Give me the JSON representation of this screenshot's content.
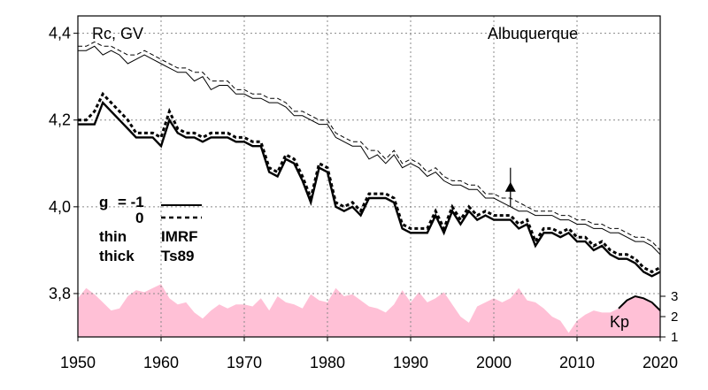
{
  "chart_data": {
    "type": "line",
    "x_range": [
      1950,
      2020
    ],
    "y_range": [
      3.7,
      4.44
    ],
    "x_ticks": [
      "1950",
      "1960",
      "1970",
      "1980",
      "1990",
      "2000",
      "2010",
      "2020"
    ],
    "y_ticks": [
      "3,8",
      "4,0",
      "4,2",
      "4,4"
    ],
    "ylabel": "Rc, GV",
    "station": "Albuquerque",
    "legend": {
      "g_label": "g",
      "g_values": [
        "= -1",
        "0"
      ],
      "thin_label": "thin",
      "thin_model": "IMRF",
      "thick_label": "thick",
      "thick_model": "Ts89"
    },
    "kp": {
      "label": "Kp",
      "axis_ticks": [
        "3",
        "2",
        "1"
      ],
      "axis_values": [
        3,
        2,
        1
      ],
      "color": "#ffc0d6",
      "years": [
        1950,
        1951,
        1952,
        1953,
        1954,
        1955,
        1956,
        1957,
        1958,
        1959,
        1960,
        1961,
        1962,
        1963,
        1964,
        1965,
        1966,
        1967,
        1968,
        1969,
        1970,
        1971,
        1972,
        1973,
        1974,
        1975,
        1976,
        1977,
        1978,
        1979,
        1980,
        1981,
        1982,
        1983,
        1984,
        1985,
        1986,
        1987,
        1988,
        1989,
        1990,
        1991,
        1992,
        1993,
        1994,
        1995,
        1996,
        1997,
        1998,
        1999,
        2000,
        2001,
        2002,
        2003,
        2004,
        2005,
        2006,
        2007,
        2008,
        2009,
        2010,
        2011,
        2012,
        2013,
        2014,
        2015,
        2016,
        2017,
        2018,
        2019,
        2020
      ],
      "values": [
        2.9,
        3.4,
        3.1,
        2.7,
        2.3,
        2.4,
        3.0,
        3.3,
        3.2,
        3.4,
        3.6,
        2.9,
        2.6,
        2.7,
        2.2,
        1.9,
        2.3,
        2.6,
        2.4,
        2.6,
        2.6,
        2.5,
        2.9,
        2.3,
        3.0,
        2.7,
        2.6,
        2.4,
        3.1,
        2.8,
        2.7,
        3.4,
        3.0,
        3.1,
        2.8,
        2.5,
        2.4,
        2.2,
        2.6,
        3.3,
        2.7,
        3.2,
        2.7,
        2.9,
        3.2,
        2.6,
        2.0,
        1.7,
        2.5,
        2.7,
        2.9,
        2.7,
        2.9,
        3.4,
        2.8,
        2.7,
        2.4,
        2.0,
        1.8,
        1.2,
        1.8,
        2.1,
        2.3,
        2.2,
        2.2,
        2.4,
        2.8,
        3.0,
        2.9,
        2.7,
        2.3
      ]
    },
    "reference_point": {
      "year": 2002,
      "value": 4.045,
      "error": 0.045
    },
    "series": [
      {
        "style": "solid-thick",
        "years": [
          1950,
          1951,
          1952,
          1953,
          1954,
          1955,
          1956,
          1957,
          1958,
          1959,
          1960,
          1961,
          1962,
          1963,
          1964,
          1965,
          1966,
          1967,
          1968,
          1969,
          1970,
          1971,
          1972,
          1973,
          1974,
          1975,
          1976,
          1977,
          1978,
          1979,
          1980,
          1981,
          1982,
          1983,
          1984,
          1985,
          1986,
          1987,
          1988,
          1989,
          1990,
          1991,
          1992,
          1993,
          1994,
          1995,
          1996,
          1997,
          1998,
          1999,
          2000,
          2001,
          2002,
          2003,
          2004,
          2005,
          2006,
          2007,
          2008,
          2009,
          2010,
          2011,
          2012,
          2013,
          2014,
          2015,
          2016,
          2017,
          2018,
          2019,
          2020
        ],
        "values": [
          4.19,
          4.19,
          4.19,
          4.24,
          4.22,
          4.2,
          4.18,
          4.16,
          4.16,
          4.16,
          4.14,
          4.2,
          4.17,
          4.16,
          4.16,
          4.15,
          4.16,
          4.16,
          4.16,
          4.15,
          4.15,
          4.14,
          4.14,
          4.08,
          4.07,
          4.11,
          4.1,
          4.06,
          4.01,
          4.09,
          4.08,
          4.0,
          3.99,
          4.0,
          3.98,
          4.02,
          4.02,
          4.02,
          4.01,
          3.95,
          3.94,
          3.94,
          3.94,
          3.98,
          3.94,
          3.99,
          3.96,
          3.99,
          3.97,
          3.98,
          3.97,
          3.97,
          3.97,
          3.95,
          3.96,
          3.91,
          3.94,
          3.94,
          3.93,
          3.94,
          3.92,
          3.92,
          3.9,
          3.91,
          3.89,
          3.88,
          3.88,
          3.87,
          3.85,
          3.84,
          3.85
        ]
      },
      {
        "style": "dotted-thick",
        "years": [
          1950,
          1951,
          1952,
          1953,
          1954,
          1955,
          1956,
          1957,
          1958,
          1959,
          1960,
          1961,
          1962,
          1963,
          1964,
          1965,
          1966,
          1967,
          1968,
          1969,
          1970,
          1971,
          1972,
          1973,
          1974,
          1975,
          1976,
          1977,
          1978,
          1979,
          1980,
          1981,
          1982,
          1983,
          1984,
          1985,
          1986,
          1987,
          1988,
          1989,
          1990,
          1991,
          1992,
          1993,
          1994,
          1995,
          1996,
          1997,
          1998,
          1999,
          2000,
          2001,
          2002,
          2003,
          2004,
          2005,
          2006,
          2007,
          2008,
          2009,
          2010,
          2011,
          2012,
          2013,
          2014,
          2015,
          2016,
          2017,
          2018,
          2019,
          2020
        ],
        "values": [
          4.2,
          4.2,
          4.22,
          4.26,
          4.24,
          4.22,
          4.2,
          4.17,
          4.17,
          4.17,
          4.16,
          4.22,
          4.18,
          4.17,
          4.17,
          4.16,
          4.17,
          4.17,
          4.17,
          4.16,
          4.16,
          4.15,
          4.15,
          4.09,
          4.08,
          4.12,
          4.11,
          4.07,
          4.02,
          4.1,
          4.09,
          4.01,
          4.0,
          4.01,
          3.99,
          4.03,
          4.03,
          4.03,
          4.02,
          3.96,
          3.95,
          3.95,
          3.95,
          3.99,
          3.95,
          4.0,
          3.97,
          4.0,
          3.98,
          3.99,
          3.98,
          3.98,
          3.98,
          3.96,
          3.97,
          3.92,
          3.95,
          3.95,
          3.94,
          3.95,
          3.93,
          3.93,
          3.91,
          3.92,
          3.9,
          3.89,
          3.89,
          3.88,
          3.86,
          3.85,
          3.86
        ]
      },
      {
        "style": "solid-thin",
        "years": [
          1950,
          1951,
          1952,
          1953,
          1954,
          1955,
          1956,
          1957,
          1958,
          1959,
          1960,
          1961,
          1962,
          1963,
          1964,
          1965,
          1966,
          1967,
          1968,
          1969,
          1970,
          1971,
          1972,
          1973,
          1974,
          1975,
          1976,
          1977,
          1978,
          1979,
          1980,
          1981,
          1982,
          1983,
          1984,
          1985,
          1986,
          1987,
          1988,
          1989,
          1990,
          1991,
          1992,
          1993,
          1994,
          1995,
          1996,
          1997,
          1998,
          1999,
          2000,
          2001,
          2002,
          2003,
          2004,
          2005,
          2006,
          2007,
          2008,
          2009,
          2010,
          2011,
          2012,
          2013,
          2014,
          2015,
          2016,
          2017,
          2018,
          2019,
          2020
        ],
        "values": [
          4.36,
          4.36,
          4.37,
          4.35,
          4.36,
          4.35,
          4.33,
          4.34,
          4.35,
          4.34,
          4.33,
          4.32,
          4.31,
          4.31,
          4.29,
          4.3,
          4.27,
          4.28,
          4.28,
          4.26,
          4.26,
          4.25,
          4.25,
          4.24,
          4.24,
          4.23,
          4.21,
          4.21,
          4.2,
          4.19,
          4.19,
          4.16,
          4.15,
          4.14,
          4.14,
          4.11,
          4.12,
          4.1,
          4.12,
          4.09,
          4.1,
          4.09,
          4.07,
          4.08,
          4.06,
          4.05,
          4.05,
          4.04,
          4.04,
          4.02,
          4.02,
          4.01,
          4.0,
          3.99,
          3.99,
          3.98,
          3.98,
          3.98,
          3.97,
          3.97,
          3.96,
          3.96,
          3.95,
          3.95,
          3.94,
          3.94,
          3.93,
          3.92,
          3.92,
          3.91,
          3.89
        ]
      },
      {
        "style": "dashed-thin",
        "years": [
          1950,
          1951,
          1952,
          1953,
          1954,
          1955,
          1956,
          1957,
          1958,
          1959,
          1960,
          1961,
          1962,
          1963,
          1964,
          1965,
          1966,
          1967,
          1968,
          1969,
          1970,
          1971,
          1972,
          1973,
          1974,
          1975,
          1976,
          1977,
          1978,
          1979,
          1980,
          1981,
          1982,
          1983,
          1984,
          1985,
          1986,
          1987,
          1988,
          1989,
          1990,
          1991,
          1992,
          1993,
          1994,
          1995,
          1996,
          1997,
          1998,
          1999,
          2000,
          2001,
          2002,
          2003,
          2004,
          2005,
          2006,
          2007,
          2008,
          2009,
          2010,
          2011,
          2012,
          2013,
          2014,
          2015,
          2016,
          2017,
          2018,
          2019,
          2020
        ],
        "values": [
          4.37,
          4.37,
          4.38,
          4.37,
          4.37,
          4.36,
          4.35,
          4.35,
          4.36,
          4.35,
          4.34,
          4.33,
          4.32,
          4.32,
          4.31,
          4.31,
          4.29,
          4.29,
          4.29,
          4.27,
          4.27,
          4.26,
          4.26,
          4.25,
          4.25,
          4.24,
          4.22,
          4.22,
          4.21,
          4.2,
          4.2,
          4.17,
          4.16,
          4.15,
          4.15,
          4.13,
          4.13,
          4.11,
          4.13,
          4.1,
          4.11,
          4.1,
          4.08,
          4.09,
          4.07,
          4.06,
          4.06,
          4.05,
          4.05,
          4.03,
          4.03,
          4.02,
          4.02,
          4.01,
          4.0,
          3.99,
          3.99,
          3.99,
          3.98,
          3.98,
          3.97,
          3.97,
          3.96,
          3.96,
          3.95,
          3.95,
          3.94,
          3.93,
          3.93,
          3.92,
          3.9
        ]
      }
    ],
    "grid": true
  }
}
